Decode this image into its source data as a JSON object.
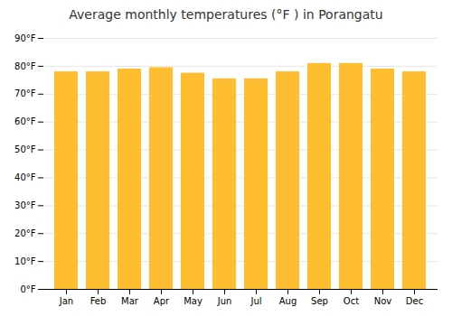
{
  "chart_data": {
    "type": "bar",
    "title": "Average monthly temperatures (°F ) in Porangatu",
    "categories": [
      "Jan",
      "Feb",
      "Mar",
      "Apr",
      "May",
      "Jun",
      "Jul",
      "Aug",
      "Sep",
      "Oct",
      "Nov",
      "Dec"
    ],
    "values": [
      78,
      78,
      79,
      79.5,
      77.5,
      75.5,
      75.5,
      78,
      81,
      81,
      79,
      78
    ],
    "color": "#FFBE30",
    "ylim": [
      0,
      90
    ],
    "yticks": [
      {
        "value": 0,
        "label": "0°F"
      },
      {
        "value": 10,
        "label": "10°F"
      },
      {
        "value": 20,
        "label": "20°F"
      },
      {
        "value": 30,
        "label": "30°F"
      },
      {
        "value": 40,
        "label": "40°F"
      },
      {
        "value": 50,
        "label": "50°F"
      },
      {
        "value": 60,
        "label": "60°F"
      },
      {
        "value": 70,
        "label": "70°F"
      },
      {
        "value": 80,
        "label": "80°F"
      },
      {
        "value": 90,
        "label": "90°F"
      }
    ],
    "grid": true
  }
}
